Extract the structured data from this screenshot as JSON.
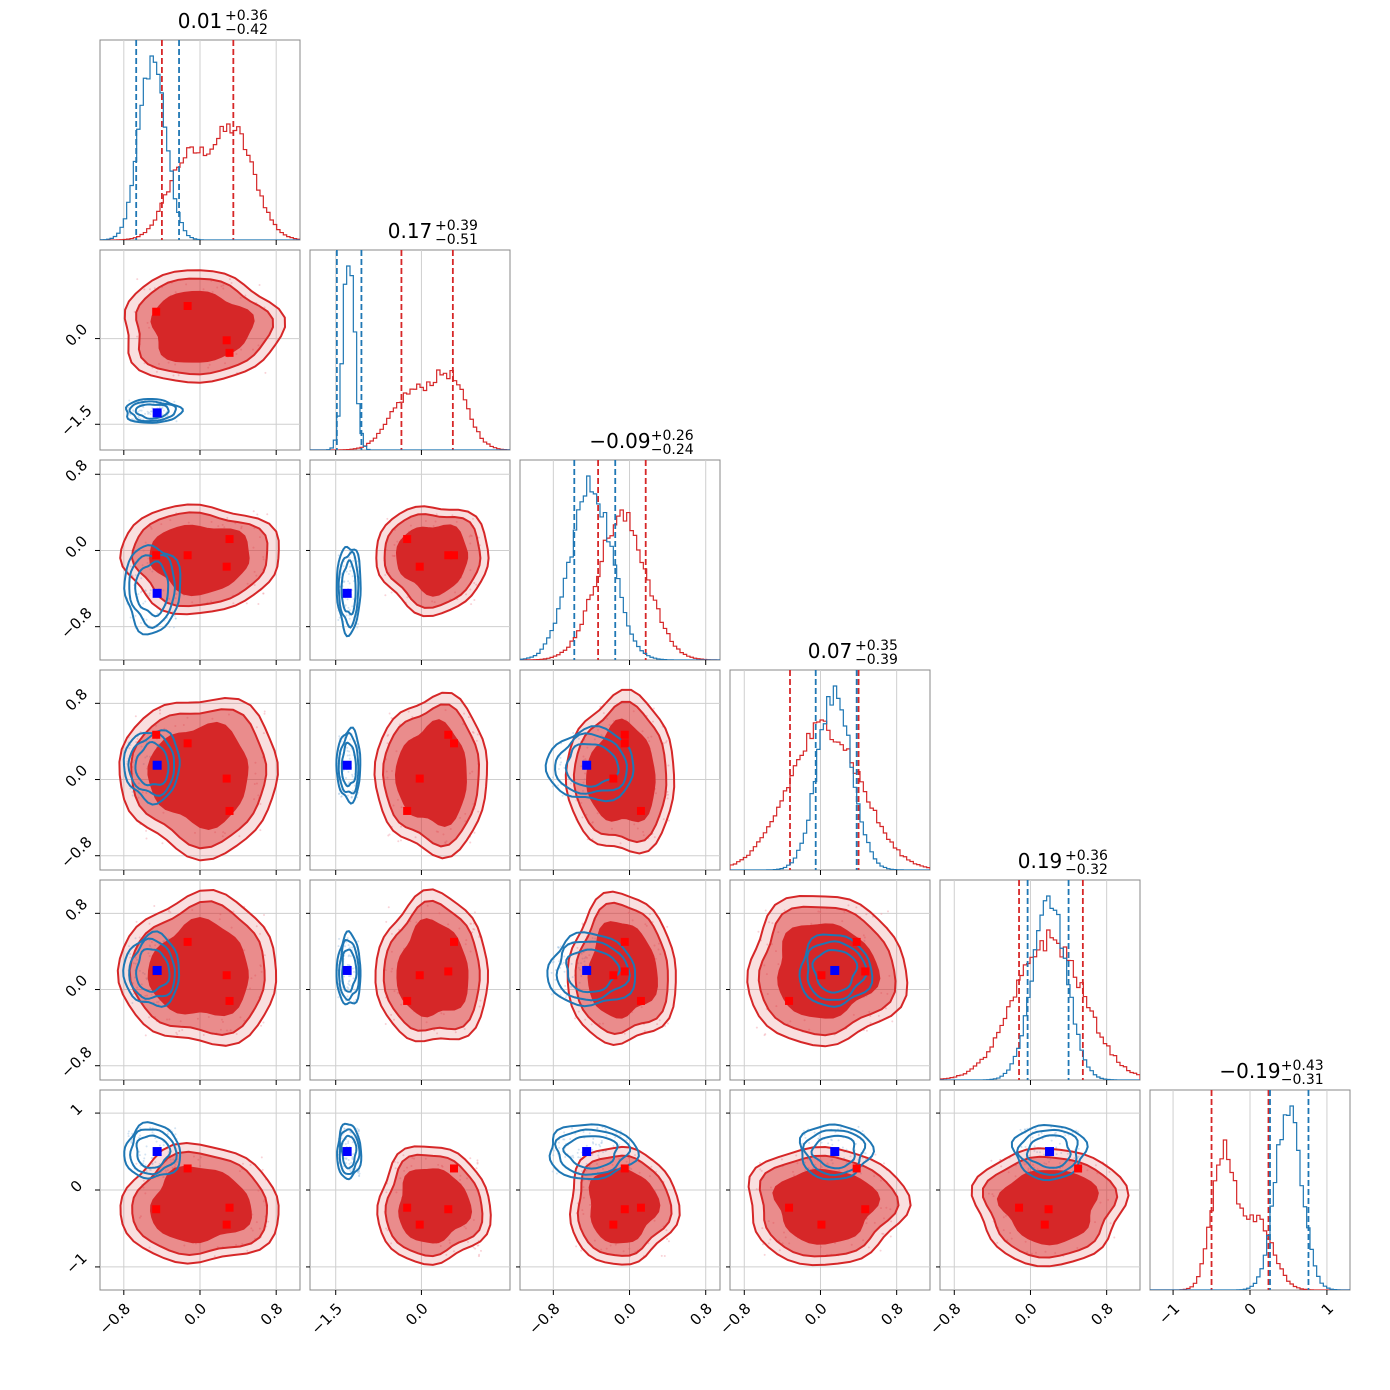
{
  "chart_data": {
    "type": "corner",
    "n_params": 6,
    "colors": {
      "red": "#d62728",
      "blue": "#1f77b4",
      "blue_marker": "#0000ff",
      "red_marker": "#ff0000"
    },
    "series": [
      {
        "name": "",
        "color": "#d62728"
      },
      {
        "name": "",
        "color": "#1f77b4"
      }
    ],
    "params": [
      {
        "range": [
          -1.05,
          1.05
        ],
        "ticks": [
          -0.8,
          0.0,
          0.8
        ],
        "tick_labels": [
          "−0.8",
          "0.0",
          "0.8"
        ],
        "title": {
          "main": "0.01",
          "plus": "+0.36",
          "minus": "−0.42"
        },
        "red": {
          "mean": 0.0,
          "sd": 0.38,
          "q": [
            -0.4,
            0.35
          ]
        },
        "blue": {
          "mean": -0.5,
          "sd": 0.14,
          "q": [
            -0.67,
            -0.22
          ]
        }
      },
      {
        "range": [
          -1.95,
          1.55
        ],
        "ticks": [
          -1.5,
          0.0
        ],
        "tick_labels": [
          "−1.5",
          "0.0"
        ],
        "title": {
          "main": "0.17",
          "plus": "+0.39",
          "minus": "−0.51"
        },
        "red": {
          "mean": 0.2,
          "sd": 0.45,
          "q": [
            -0.35,
            0.55
          ]
        },
        "blue": {
          "mean": -1.27,
          "sd": 0.1,
          "q": [
            -1.48,
            -1.05
          ]
        }
      },
      {
        "range": [
          -1.15,
          0.95
        ],
        "ticks": [
          -0.8,
          0.0,
          0.8
        ],
        "tick_labels": [
          "−0.8",
          "0.0",
          "0.8"
        ],
        "title": {
          "main": "−0.09",
          "plus": "+0.26",
          "minus": "−0.24"
        },
        "red": {
          "mean": -0.08,
          "sd": 0.26,
          "q": [
            -0.33,
            0.17
          ]
        },
        "blue": {
          "mean": -0.4,
          "sd": 0.22,
          "q": [
            -0.58,
            -0.15
          ]
        }
      },
      {
        "range": [
          -0.95,
          1.15
        ],
        "ticks": [
          -0.8,
          0.0,
          0.8
        ],
        "tick_labels": [
          "−0.8",
          "0.0",
          "0.8"
        ],
        "title": {
          "main": "0.07",
          "plus": "+0.35",
          "minus": "−0.39"
        },
        "red": {
          "mean": 0.05,
          "sd": 0.38,
          "q": [
            -0.32,
            0.4
          ]
        },
        "blue": {
          "mean": 0.15,
          "sd": 0.18,
          "q": [
            -0.05,
            0.38
          ]
        }
      },
      {
        "range": [
          -0.95,
          1.15
        ],
        "ticks": [
          -0.8,
          0.0,
          0.8
        ],
        "tick_labels": [
          "−0.8",
          "0.0",
          "0.8"
        ],
        "title": {
          "main": "0.19",
          "plus": "+0.36",
          "minus": "−0.32"
        },
        "red": {
          "mean": 0.2,
          "sd": 0.36,
          "q": [
            -0.12,
            0.55
          ]
        },
        "blue": {
          "mean": 0.2,
          "sd": 0.18,
          "q": [
            -0.03,
            0.4
          ]
        }
      },
      {
        "range": [
          -1.3,
          1.3
        ],
        "ticks": [
          -1,
          0,
          1
        ],
        "tick_labels": [
          "−1",
          "0",
          "1"
        ],
        "title": {
          "main": "−0.19",
          "plus": "+0.43",
          "minus": "−0.31"
        },
        "red": {
          "mean": -0.2,
          "sd": 0.35,
          "q": [
            -0.5,
            0.24
          ]
        },
        "blue": {
          "mean": 0.5,
          "sd": 0.17,
          "q": [
            0.26,
            0.76
          ]
        }
      }
    ],
    "red_markers": [
      [
        -0.46,
        0.47,
        -0.05,
        0.47,
        0.19,
        -0.25
      ],
      [
        -0.13,
        0.57,
        -0.05,
        0.38,
        0.5,
        0.28
      ],
      [
        0.28,
        -0.03,
        -0.17,
        0.01,
        0.15,
        -0.45
      ],
      [
        0.31,
        -0.25,
        0.12,
        -0.33,
        -0.12,
        -0.23
      ]
    ],
    "blue_marker": [
      -0.45,
      -1.3,
      -0.45,
      0.15,
      0.2,
      0.5
    ],
    "grid": true,
    "legend": "none"
  }
}
